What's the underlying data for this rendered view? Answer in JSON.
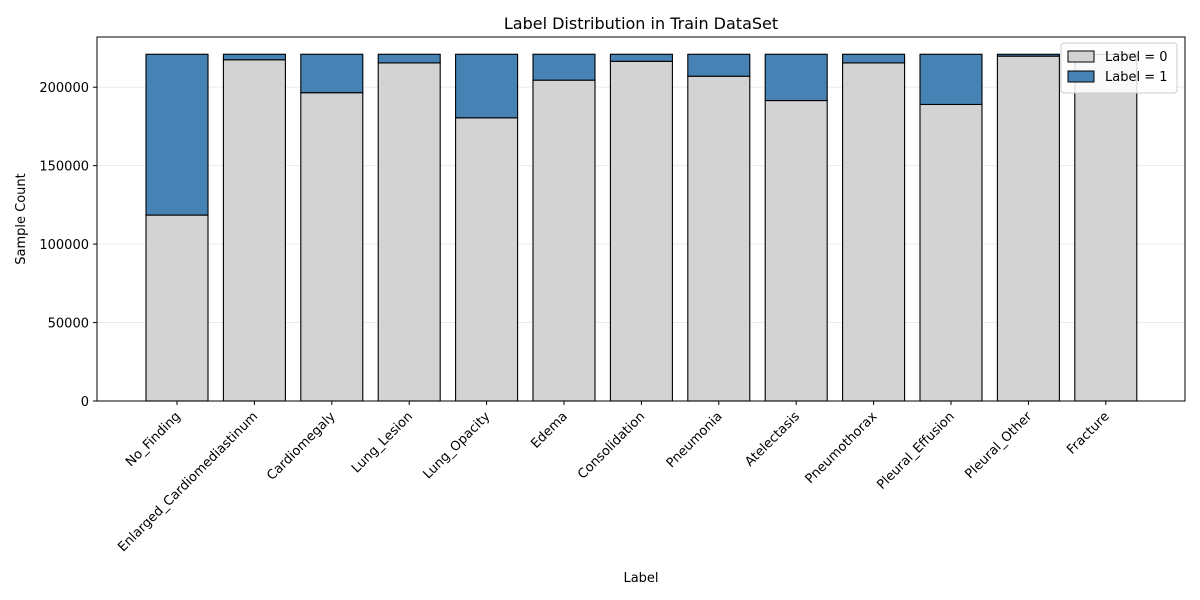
{
  "chart_data": {
    "type": "bar",
    "stacked": true,
    "title": "Label Distribution in Train DataSet",
    "xlabel": "Label",
    "ylabel": "Sample Count",
    "ylim": [
      0,
      232000
    ],
    "yticks": [
      0,
      50000,
      100000,
      150000,
      200000
    ],
    "grid": true,
    "legend_placement": "top-right",
    "categories": [
      "No_Finding",
      "Enlarged_Cardiomediastinum",
      "Cardiomegaly",
      "Lung_Lesion",
      "Lung_Opacity",
      "Edema",
      "Consolidation",
      "Pneumonia",
      "Atelectasis",
      "Pneumothorax",
      "Pleural_Effusion",
      "Pleural_Other",
      "Fracture"
    ],
    "series": [
      {
        "name": "Label = 0",
        "color": "#d3d3d3",
        "values": [
          118500,
          217500,
          196500,
          215500,
          180500,
          204500,
          216500,
          207000,
          191500,
          215500,
          189000,
          219800,
          221000
        ]
      },
      {
        "name": "Label = 1",
        "color": "#4682b4",
        "values": [
          102500,
          3500,
          24500,
          5500,
          40500,
          16500,
          4500,
          14000,
          29500,
          5500,
          32000,
          1200,
          0
        ]
      }
    ]
  }
}
